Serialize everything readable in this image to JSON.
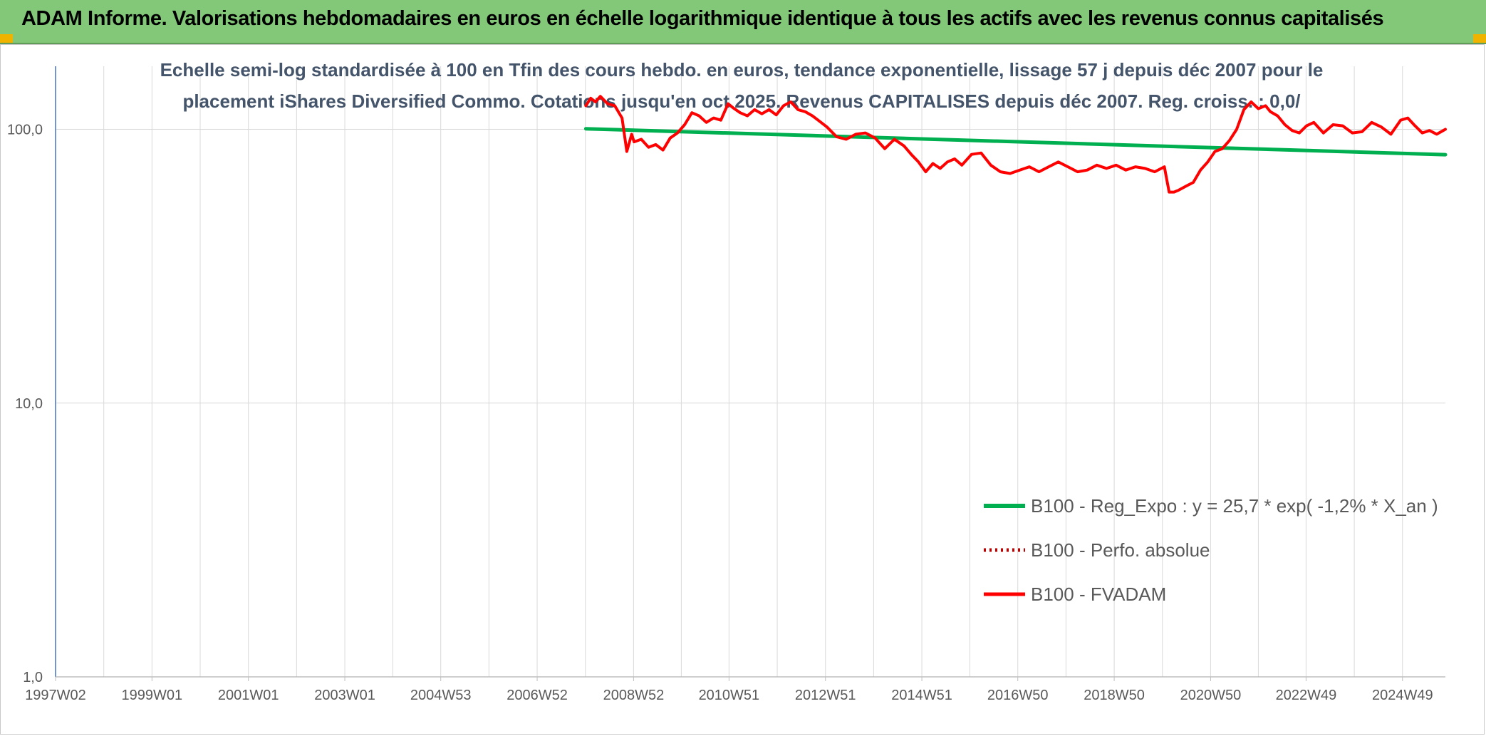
{
  "header": {
    "title": "ADAM Informe. Valorisations hebdomadaires en euros en échelle logarithmique identique à tous les actifs avec les revenus connus capitalisés"
  },
  "colors": {
    "banner": "#82c878",
    "trend": "#00b050",
    "fvadam": "#ff0000",
    "perfo": "#c00000",
    "grid": "#d9d9d9",
    "axis": "#4472c4"
  },
  "chart_data": {
    "type": "line",
    "title_lines": [
      "Echelle semi-log standardisée à 100 en Tfin des cours hebdo. en euros, tendance exponentielle, lissage 57 j depuis déc 2007 pour le",
      "placement iShares Diversified Commo. Cotations jusqu'en oct 2025. Revenus CAPITALISES depuis déc 2007. Reg. croiss. : 0,0/"
    ],
    "y_scale": "log",
    "ylim": [
      1,
      170
    ],
    "y_ticks": [
      {
        "value": 100,
        "label": "100,0"
      },
      {
        "value": 10,
        "label": "10,0"
      },
      {
        "value": 1,
        "label": "1,0"
      }
    ],
    "x_range": [
      1997.0,
      2025.83
    ],
    "x_ticks": [
      {
        "value": 1997.0,
        "label": "1997W02"
      },
      {
        "value": 1999.0,
        "label": "1999W01"
      },
      {
        "value": 2001.0,
        "label": "2001W01"
      },
      {
        "value": 2003.0,
        "label": "2003W01"
      },
      {
        "value": 2004.99,
        "label": "2004W53"
      },
      {
        "value": 2006.99,
        "label": "2006W52"
      },
      {
        "value": 2008.99,
        "label": "2008W52"
      },
      {
        "value": 2010.97,
        "label": "2010W51"
      },
      {
        "value": 2012.97,
        "label": "2012W51"
      },
      {
        "value": 2014.97,
        "label": "2014W51"
      },
      {
        "value": 2016.96,
        "label": "2016W50"
      },
      {
        "value": 2018.96,
        "label": "2018W50"
      },
      {
        "value": 2020.96,
        "label": "2020W50"
      },
      {
        "value": 2022.94,
        "label": "2022W49"
      },
      {
        "value": 2024.94,
        "label": "2024W49"
      }
    ],
    "legend_position": "bottom-right",
    "grid": true,
    "series": [
      {
        "name": "B100 - Reg_Expo : y = 25,7 * exp( -1,2% *  X_an )",
        "style": "solid",
        "x": [
          2008.0,
          2025.83
        ],
        "y": [
          100.5,
          80.8
        ]
      },
      {
        "name": "B100 - Perfo. absolue",
        "style": "dotted",
        "x": [],
        "y": []
      },
      {
        "name": "B100 - FVADAM",
        "style": "solid",
        "x": [
          2008.0,
          2008.1,
          2008.2,
          2008.3,
          2008.45,
          2008.6,
          2008.75,
          2008.85,
          2008.95,
          2009.0,
          2009.15,
          2009.3,
          2009.45,
          2009.6,
          2009.75,
          2009.9,
          2010.05,
          2010.2,
          2010.35,
          2010.5,
          2010.65,
          2010.8,
          2010.95,
          2011.05,
          2011.2,
          2011.35,
          2011.5,
          2011.65,
          2011.8,
          2011.95,
          2012.1,
          2012.25,
          2012.4,
          2012.55,
          2012.7,
          2012.85,
          2013.0,
          2013.2,
          2013.4,
          2013.6,
          2013.8,
          2014.0,
          2014.2,
          2014.4,
          2014.6,
          2014.75,
          2014.9,
          2015.05,
          2015.2,
          2015.35,
          2015.5,
          2015.65,
          2015.8,
          2016.0,
          2016.2,
          2016.4,
          2016.6,
          2016.8,
          2017.0,
          2017.2,
          2017.4,
          2017.6,
          2017.8,
          2018.0,
          2018.2,
          2018.4,
          2018.6,
          2018.8,
          2019.0,
          2019.2,
          2019.4,
          2019.6,
          2019.8,
          2020.0,
          2020.1,
          2020.2,
          2020.3,
          2020.45,
          2020.6,
          2020.75,
          2020.9,
          2021.05,
          2021.2,
          2021.35,
          2021.5,
          2021.65,
          2021.8,
          2021.95,
          2022.1,
          2022.2,
          2022.35,
          2022.5,
          2022.65,
          2022.8,
          2022.95,
          2023.1,
          2023.3,
          2023.5,
          2023.7,
          2023.9,
          2024.1,
          2024.3,
          2024.5,
          2024.7,
          2024.9,
          2025.05,
          2025.2,
          2025.35,
          2025.5,
          2025.65,
          2025.83
        ],
        "y": [
          122,
          130,
          126,
          132,
          124,
          122,
          110,
          83,
          96,
          90,
          92,
          86,
          88,
          84,
          93,
          97,
          104,
          115,
          112,
          106,
          110,
          108,
          124,
          120,
          115,
          112,
          118,
          114,
          118,
          113,
          122,
          126,
          118,
          116,
          112,
          107,
          102,
          94,
          92,
          96,
          97,
          93,
          85,
          92,
          87,
          81,
          76,
          70,
          75,
          72,
          76,
          78,
          74,
          81,
          82,
          74,
          70,
          69,
          71,
          73,
          70,
          73,
          76,
          73,
          70,
          71,
          74,
          72,
          74,
          71,
          73,
          72,
          70,
          73,
          59,
          59,
          60,
          62,
          64,
          71,
          76,
          83,
          85,
          91,
          100,
          118,
          126,
          119,
          122,
          116,
          112,
          104,
          99,
          97,
          103,
          106,
          97,
          104,
          103,
          97,
          98,
          106,
          102,
          96,
          108,
          110,
          103,
          97,
          99,
          96,
          100
        ]
      }
    ]
  }
}
